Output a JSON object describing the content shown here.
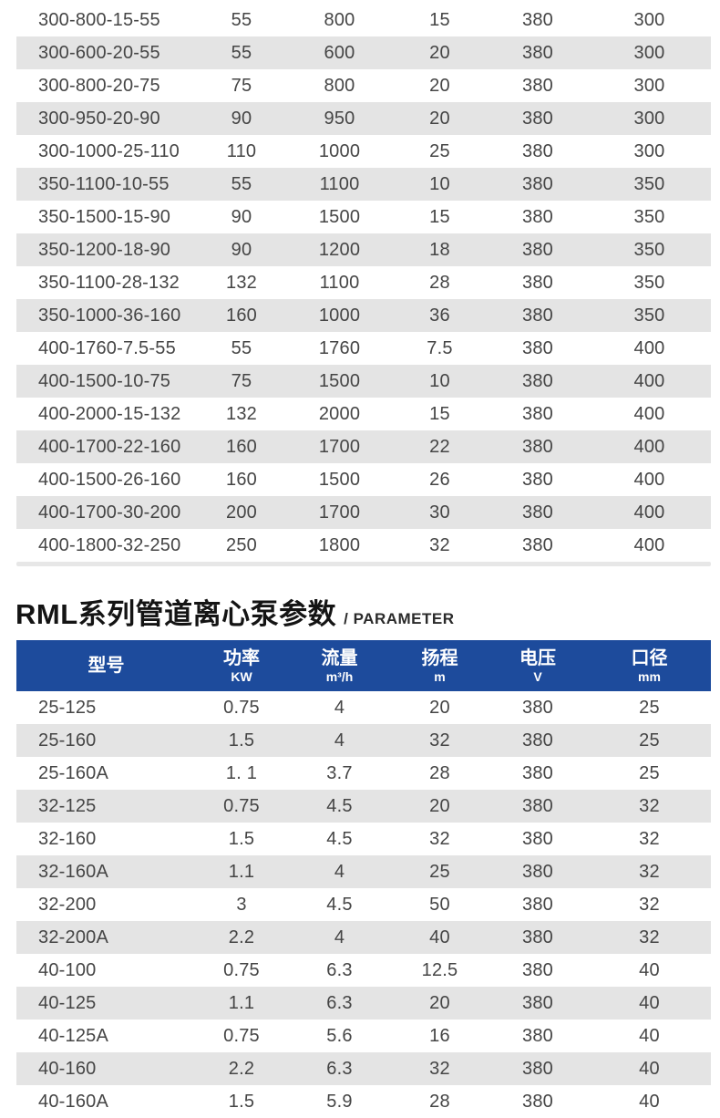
{
  "colors": {
    "header_bg": "#1d4b9c",
    "stripe": "#e4e4e4",
    "divider": "#e7e7e7",
    "cell_text": "#454545",
    "header_text": "#ffffff"
  },
  "section": {
    "title": "RML系列管道离心泵参数",
    "subtitle": "/ PARAMETER"
  },
  "table_top": {
    "rows": [
      [
        "300-800-15-55",
        "55",
        "800",
        "15",
        "380",
        "300"
      ],
      [
        "300-600-20-55",
        "55",
        "600",
        "20",
        "380",
        "300"
      ],
      [
        "300-800-20-75",
        "75",
        "800",
        "20",
        "380",
        "300"
      ],
      [
        "300-950-20-90",
        "90",
        "950",
        "20",
        "380",
        "300"
      ],
      [
        "300-1000-25-110",
        "110",
        "1000",
        "25",
        "380",
        "300"
      ],
      [
        "350-1100-10-55",
        "55",
        "1100",
        "10",
        "380",
        "350"
      ],
      [
        "350-1500-15-90",
        "90",
        "1500",
        "15",
        "380",
        "350"
      ],
      [
        "350-1200-18-90",
        "90",
        "1200",
        "18",
        "380",
        "350"
      ],
      [
        "350-1100-28-132",
        "132",
        "1100",
        "28",
        "380",
        "350"
      ],
      [
        "350-1000-36-160",
        "160",
        "1000",
        "36",
        "380",
        "350"
      ],
      [
        "400-1760-7.5-55",
        "55",
        "1760",
        "7.5",
        "380",
        "400"
      ],
      [
        "400-1500-10-75",
        "75",
        "1500",
        "10",
        "380",
        "400"
      ],
      [
        "400-2000-15-132",
        "132",
        "2000",
        "15",
        "380",
        "400"
      ],
      [
        "400-1700-22-160",
        "160",
        "1700",
        "22",
        "380",
        "400"
      ],
      [
        "400-1500-26-160",
        "160",
        "1500",
        "26",
        "380",
        "400"
      ],
      [
        "400-1700-30-200",
        "200",
        "1700",
        "30",
        "380",
        "400"
      ],
      [
        "400-1800-32-250",
        "250",
        "1800",
        "32",
        "380",
        "400"
      ]
    ]
  },
  "table_rml": {
    "columns": [
      {
        "label": "型号",
        "unit": ""
      },
      {
        "label": "功率",
        "unit": "KW"
      },
      {
        "label": "流量",
        "unit": "m³/h"
      },
      {
        "label": "扬程",
        "unit": "m"
      },
      {
        "label": "电压",
        "unit": "V"
      },
      {
        "label": "口径",
        "unit": "mm"
      }
    ],
    "rows": [
      [
        "25-125",
        "0.75",
        "4",
        "20",
        "380",
        "25"
      ],
      [
        "25-160",
        "1.5",
        "4",
        "32",
        "380",
        "25"
      ],
      [
        "25-160A",
        "1. 1",
        "3.7",
        "28",
        "380",
        "25"
      ],
      [
        "32-125",
        "0.75",
        "4.5",
        "20",
        "380",
        "32"
      ],
      [
        "32-160",
        "1.5",
        "4.5",
        "32",
        "380",
        "32"
      ],
      [
        "32-160A",
        "1.1",
        "4",
        "25",
        "380",
        "32"
      ],
      [
        "32-200",
        "3",
        "4.5",
        "50",
        "380",
        "32"
      ],
      [
        "32-200A",
        "2.2",
        "4",
        "40",
        "380",
        "32"
      ],
      [
        "40-100",
        "0.75",
        "6.3",
        "12.5",
        "380",
        "40"
      ],
      [
        "40-125",
        "1.1",
        "6.3",
        "20",
        "380",
        "40"
      ],
      [
        "40-125A",
        "0.75",
        "5.6",
        "16",
        "380",
        "40"
      ],
      [
        "40-160",
        "2.2",
        "6.3",
        "32",
        "380",
        "40"
      ],
      [
        "40-160A",
        "1.5",
        "5.9",
        "28",
        "380",
        "40"
      ]
    ]
  }
}
